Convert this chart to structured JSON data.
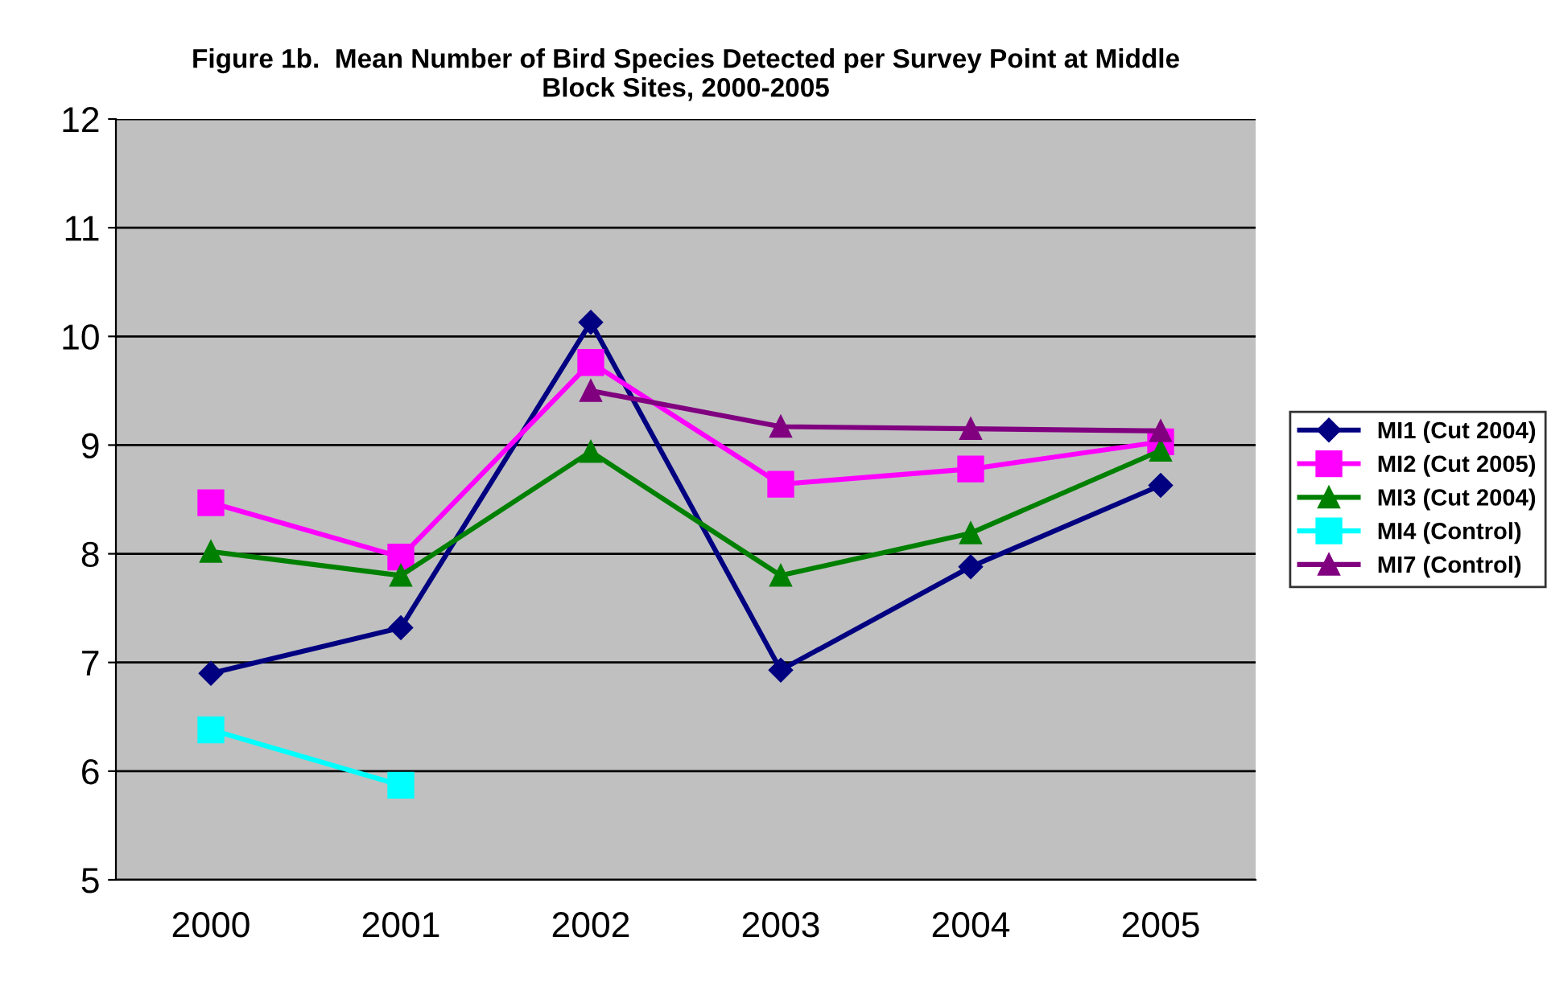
{
  "chart_data": {
    "type": "line",
    "title": "Figure 1b.  Mean Number of Bird Species Detected per Survey Point at Middle\nBlock Sites, 2000-2005",
    "categories": [
      "2000",
      "2001",
      "2002",
      "2003",
      "2004",
      "2005"
    ],
    "ylim": [
      5,
      12
    ],
    "yticks": [
      5,
      6,
      7,
      8,
      9,
      10,
      11,
      12
    ],
    "grid": "y",
    "legend": "right",
    "series": [
      {
        "name": "MI1 (Cut 2004)",
        "color": "#000080",
        "marker": "diamond",
        "values": [
          6.9,
          7.32,
          10.13,
          6.93,
          7.88,
          8.63
        ]
      },
      {
        "name": "MI2 (Cut 2005)",
        "color": "#ff00ff",
        "marker": "square",
        "values": [
          8.47,
          7.97,
          9.76,
          8.64,
          8.78,
          9.03
        ]
      },
      {
        "name": "MI3 (Cut 2004)",
        "color": "#008000",
        "marker": "triangle",
        "values": [
          8.02,
          7.8,
          8.94,
          7.8,
          8.19,
          8.95
        ]
      },
      {
        "name": "MI4 (Control)",
        "color": "#00ffff",
        "marker": "square",
        "values": [
          6.38,
          5.87,
          null,
          null,
          null,
          null
        ]
      },
      {
        "name": "MI7 (Control)",
        "color": "#800080",
        "marker": "triangle",
        "values": [
          null,
          null,
          9.5,
          9.17,
          9.15,
          9.13
        ]
      }
    ]
  }
}
